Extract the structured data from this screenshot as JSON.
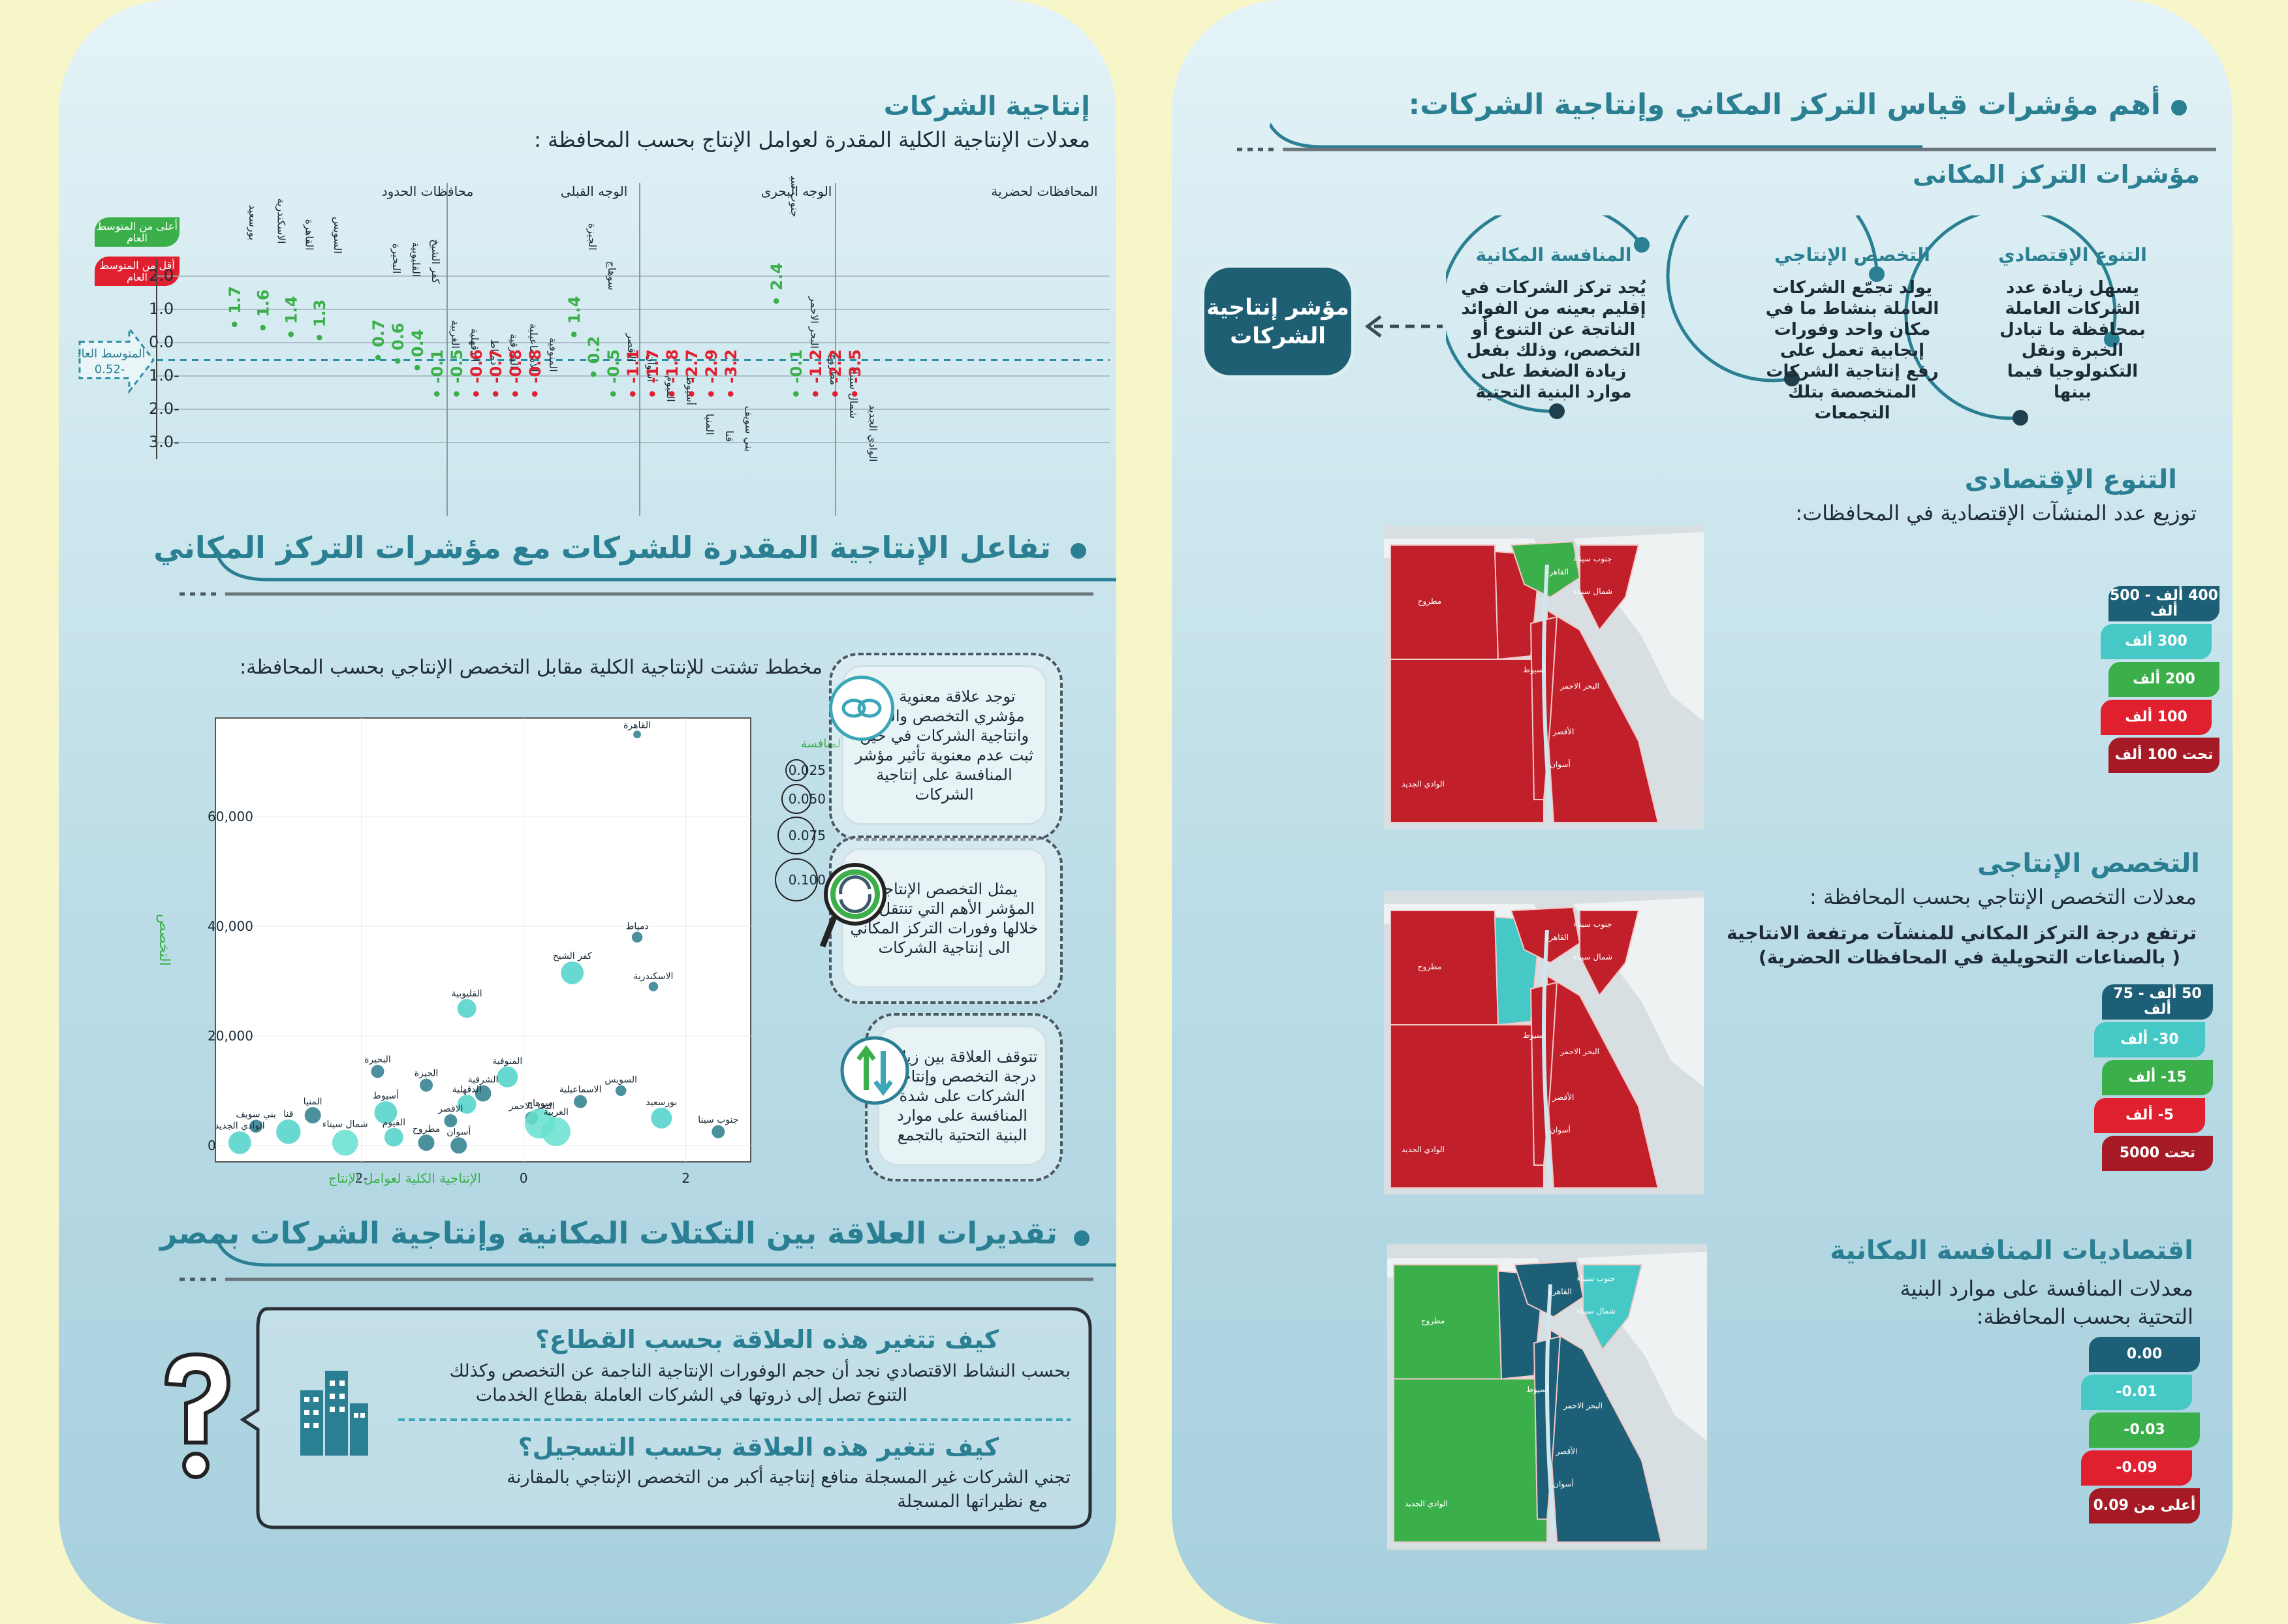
{
  "right": {
    "main_title": "أهم مؤشرات قياس التركز المكاني وإنتاجية الشركات:",
    "subtitle": "مؤشرات التركز المكانى",
    "arc_items": [
      {
        "title": "التنوع الإقتصادي",
        "text": "يسهل زيادة عدد الشركات العاملة بمحافظة ما تبادل الخبرة ونقل التكنولوجيا فيما بينها"
      },
      {
        "title": "التخصص الإنتاجي",
        "text": "يولد تجمّع الشركات العاملة بنشاط ما في مكان واحد وفورات إيجابية تعمل على رفع إنتاجية الشركات المتخصصة بتلك التجمعات"
      },
      {
        "title": "المنافسة المكانية",
        "text": "يُجد تركز الشركات في إقليم بعينه من الفوائد الناتجة عن التنوع أو التخصص، وذلك بفعل زيادة الضغط على موارد البنية التحتية"
      }
    ],
    "productivity_box": "مؤشر إنتاجية الشركات",
    "diversity": {
      "title": "التنوع الإقتصادى",
      "subtitle": "توزيع عدد المنشآت الإقتصادية في المحافظات:",
      "legend": [
        {
          "label": "400 ألف - 500 ألف",
          "color": "#1d5f76"
        },
        {
          "label": "300 ألف",
          "color": "#46c9c6"
        },
        {
          "label": "200 ألف",
          "color": "#3bb04a"
        },
        {
          "label": "100 ألف",
          "color": "#e0202f"
        },
        {
          "label": "تحت 100 ألف",
          "color": "#a51a24"
        }
      ]
    },
    "specialization": {
      "title": "التخصص الإنتاجى",
      "subtitle": "معدلات التخصص الإنتاجي بحسب المحافظة :",
      "note1": "ترتفع درجة التركز المكاني للمنشآت مرتفعة الانتاجية",
      "note2": "( بالصناعات التحويلية في المحافظات الحضرية)",
      "legend": [
        {
          "label": "50 ألف - 75 ألف",
          "color": "#1d5f76"
        },
        {
          "label": "30- ألف",
          "color": "#46c9c6"
        },
        {
          "label": "15- ألف",
          "color": "#3bb04a"
        },
        {
          "label": "5- ألف",
          "color": "#e0202f"
        },
        {
          "label": "تحت 5000",
          "color": "#a51a24"
        }
      ]
    },
    "competition": {
      "title": "اقتصاديات المنافسة المكانية",
      "subtitle1": "معدلات المنافسة على موارد البنية",
      "subtitle2": "التحتية بحسب المحافظة:",
      "legend": [
        {
          "label": "0.00",
          "color": "#1d5f76"
        },
        {
          "label": "0.01-",
          "color": "#46c9c6"
        },
        {
          "label": "0.03-",
          "color": "#3bb04a"
        },
        {
          "label": "0.09-",
          "color": "#e0202f"
        },
        {
          "label": "أعلى من 0.09",
          "color": "#a51a24"
        }
      ]
    },
    "map_labels": {
      "matrouh": "مطروح",
      "wadi": "الوادي الجديد",
      "south_sinai": "جنوب سيناء",
      "north_sinai": "شمال سيناء",
      "red_sea": "البحر الاحمر",
      "assiut": "أسيوط",
      "luxor": "الأقصر",
      "aswan": "أسوان",
      "cairo": "القاهرة"
    }
  },
  "left": {
    "prod_title": "إنتاجية الشركات",
    "prod_subtitle": "معدلات الإنتاجية الكلية المقدرة لعوامل الإنتاج بحسب المحافظة :",
    "legend_high": "أعلى من المتوسط العام",
    "legend_low": "أقل من المتوسط العام",
    "avg_label": "المتوسط العام",
    "avg_value": "-0.52",
    "group_labels": [
      "المحافظات لحضرية",
      "الوجه البحرى",
      "الوجه القبلى",
      "محافظات الحدود"
    ],
    "interaction_title": "تفاعل الإنتاجية المقدرة للشركات مع مؤشرات التركز المكاني",
    "scatter_title": "مخطط تشتت للإنتاجية الكلية مقابل التخصص الإنتاجي بحسب المحافظة:",
    "info_boxes": [
      "توجد علاقة معنوية بين مؤشري التخصص والتنوع وانتاجية الشركات في حين ثبت عدم معنوية تأثير مؤشر المنافسة على إنتاجية الشركات",
      "يمثل التخصص الإنتاجي المؤشر الأهم التي تنتقل من خلالها وفورات التركز المكاني الى إنتاجية الشركات",
      "تتوقف العلاقة بين زيادة درجة التخصص وإنتاجية الشركات على شدة المنافسة على موارد البنية التحتية بالتجمع"
    ],
    "estimates_title": "تقديرات العلاقة بين التكتلات المكانية وإنتاجية الشركات بمصر",
    "q1_title": "كيف تتغير هذه العلاقة بحسب القطاع؟",
    "q1_text1": "بحسب النشاط الاقتصادي نجد أن حجم الوفورات الإنتاجية الناجمة عن التخصص وكذلك",
    "q1_text2": "التنوع تصل إلى ذروتها في الشركات العاملة بقطاع الخدمات",
    "q2_title": "كيف تتغير هذه العلاقة بحسب التسجيل؟",
    "q2_text1": "تجني الشركات غير المسجلة منافع إنتاجية أكبر من التخصص الإنتاجي بالمقارنة",
    "q2_text2": "مع نظيراتها المسجلة"
  },
  "chart_data": [
    {
      "type": "bar",
      "title": "معدلات الإنتاجية الكلية المقدرة لعوامل الإنتاج بحسب المحافظة",
      "ylim": [
        -3.5,
        2.5
      ],
      "yticks": [
        "2.0",
        "1.0",
        "0.0",
        "-1.0",
        "-2.0",
        "-3.0"
      ],
      "reference_line": -0.52,
      "categories": [
        "بورسعيد",
        "الاسكندرية",
        "القاهرة",
        "السويس",
        "البحيرة",
        "القليوبية",
        "كفر الشيخ",
        "الغربية",
        "الدقهلية",
        "دمياط",
        "الشرقية",
        "الاسماعيلية",
        "المنوفية",
        "الجيزة",
        "سوهاج",
        "الاقصر",
        "أسوان",
        "الفيوم",
        "أسيوط",
        "المنيا",
        "قنا",
        "بني سويف",
        "جنوب سينا",
        "البحر الاحمر",
        "مطروح",
        "شمال سيناء",
        "الوادي الجديد"
      ],
      "values": [
        1.7,
        1.6,
        1.4,
        1.3,
        0.7,
        0.6,
        0.4,
        -0.1,
        -0.5,
        -0.6,
        -0.7,
        -0.8,
        -0.8,
        1.4,
        0.2,
        -0.5,
        -1.1,
        -1.7,
        -1.8,
        -2.7,
        -2.9,
        -3.2,
        2.4,
        -0.1,
        -1.2,
        -2.2,
        -3.5
      ],
      "labels": [
        "1.7",
        "1.6",
        "1.4",
        "1.3",
        "0.7",
        "0.6",
        "0.4",
        "0.1-",
        "0.5-",
        "0.6-",
        "0.7-",
        "0.8-",
        "0.8-",
        "1.4",
        "0.2",
        "0.5-",
        "1.1-",
        "1.7-",
        "1.8-",
        "2.7-",
        "2.9-",
        "3.2-",
        "2.4",
        "0.1-",
        "1.2-",
        "2.2-",
        "3.5-"
      ]
    },
    {
      "type": "scatter",
      "xlabel": "الإنتاجية الكلية لعوامل الإنتاج",
      "ylabel": "التخصص",
      "x_ticks": [
        "-2",
        "0",
        "2"
      ],
      "y_ticks": [
        "0",
        "20,000",
        "40,000",
        "60,000"
      ],
      "xlim": [
        -3.8,
        2.8
      ],
      "ylim": [
        -3000,
        78000
      ],
      "size_legend_title": "المنافسة",
      "size_legend": [
        "0.025",
        "0.050",
        "0.075",
        "0.100"
      ],
      "points": [
        {
          "name": "القاهرة",
          "x": 1.4,
          "y": 75000,
          "s": 0.001
        },
        {
          "name": "دمياط",
          "x": 1.4,
          "y": 38000,
          "s": 0.005
        },
        {
          "name": "الاسكندرية",
          "x": 1.6,
          "y": 29000,
          "s": 0.003
        },
        {
          "name": "كفر الشيخ",
          "x": 0.6,
          "y": 31500,
          "s": 0.05
        },
        {
          "name": "القليوبية",
          "x": -0.7,
          "y": 25000,
          "s": 0.03
        },
        {
          "name": "البحيرة",
          "x": -1.8,
          "y": 13500,
          "s": 0.01
        },
        {
          "name": "المنوفية",
          "x": -0.2,
          "y": 12500,
          "s": 0.04
        },
        {
          "name": "الجيزة",
          "x": -1.2,
          "y": 11000,
          "s": 0.01
        },
        {
          "name": "الشرقية",
          "x": -0.5,
          "y": 9500,
          "s": 0.02
        },
        {
          "name": "الدقهلية",
          "x": -0.7,
          "y": 7500,
          "s": 0.03
        },
        {
          "name": "الاسماعيلية",
          "x": 0.7,
          "y": 8000,
          "s": 0.01
        },
        {
          "name": "السويس",
          "x": 1.2,
          "y": 10000,
          "s": 0.005
        },
        {
          "name": "بورسعيد",
          "x": 1.7,
          "y": 5000,
          "s": 0.04
        },
        {
          "name": "البحر الاحمر",
          "x": 0.1,
          "y": 5000,
          "s": 0.01
        },
        {
          "name": "سوهاج",
          "x": 0.2,
          "y": 4000,
          "s": 0.1
        },
        {
          "name": "الغربية",
          "x": 0.4,
          "y": 2500,
          "s": 0.09
        },
        {
          "name": "الاقصر",
          "x": -0.9,
          "y": 4500,
          "s": 0.01
        },
        {
          "name": "أسيوط",
          "x": -1.7,
          "y": 6000,
          "s": 0.05
        },
        {
          "name": "المنيا",
          "x": -2.6,
          "y": 5500,
          "s": 0.02
        },
        {
          "name": "قنا",
          "x": -2.9,
          "y": 2500,
          "s": 0.06
        },
        {
          "name": "بني سويف",
          "x": -3.3,
          "y": 3500,
          "s": 0.01
        },
        {
          "name": "الفيوم",
          "x": -1.6,
          "y": 1500,
          "s": 0.03
        },
        {
          "name": "مطروح",
          "x": -1.2,
          "y": 500,
          "s": 0.02
        },
        {
          "name": "أسوان",
          "x": -0.8,
          "y": 0,
          "s": 0.02
        },
        {
          "name": "شمال سيناء",
          "x": -2.2,
          "y": 500,
          "s": 0.07
        },
        {
          "name": "الوادي الجديد",
          "x": -3.5,
          "y": 500,
          "s": 0.05
        },
        {
          "name": "جنوب سينا",
          "x": 2.4,
          "y": 2500,
          "s": 0.01
        }
      ]
    }
  ]
}
